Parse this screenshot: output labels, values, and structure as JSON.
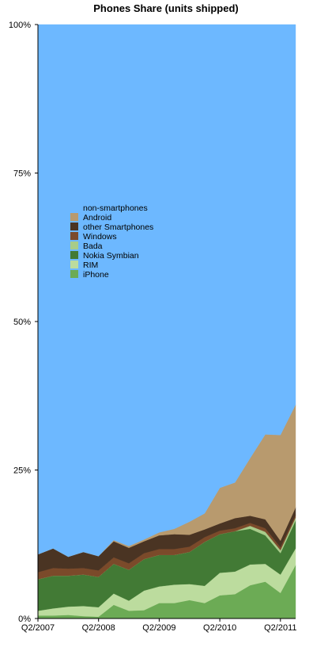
{
  "chart_data": {
    "type": "area",
    "stacked": true,
    "normalized": true,
    "title": "Phones Share (units shipped)",
    "xlabel": "",
    "ylabel": "",
    "ylim": [
      0,
      100
    ],
    "y_ticks": [
      0,
      25,
      50,
      75,
      100
    ],
    "y_tick_labels": [
      "0%",
      "25%",
      "50%",
      "75%",
      "100%"
    ],
    "x_ticks": [
      "Q2/2007",
      "Q2/2008",
      "Q2/2009",
      "Q2/2010",
      "Q2/2011"
    ],
    "x_tick_indices": [
      0,
      4,
      8,
      12,
      16
    ],
    "categories": [
      "Q2/2007",
      "Q3/2007",
      "Q4/2007",
      "Q1/2008",
      "Q2/2008",
      "Q3/2008",
      "Q4/2008",
      "Q1/2009",
      "Q2/2009",
      "Q3/2009",
      "Q4/2009",
      "Q1/2010",
      "Q2/2010",
      "Q3/2010",
      "Q4/2010",
      "Q1/2011",
      "Q2/2011",
      "Q3/2011"
    ],
    "legend_position": "upper-left",
    "legend": [
      {
        "label": "non-smartphones",
        "color": "#6db8ff"
      },
      {
        "label": "Android",
        "color": "#b89a6e"
      },
      {
        "label": "other Smartphones",
        "color": "#4a3423"
      },
      {
        "label": "Windows",
        "color": "#7b4a2a"
      },
      {
        "label": "Bada",
        "color": "#a8cc8a"
      },
      {
        "label": "Nokia Symbian",
        "color": "#427a35"
      },
      {
        "label": "RIM",
        "color": "#bcdc9e"
      },
      {
        "label": "iPhone",
        "color": "#6cab55"
      }
    ],
    "series": [
      {
        "name": "iPhone",
        "color": "#6cab55",
        "values": [
          0.5,
          0.5,
          0.6,
          0.4,
          0.3,
          2.3,
          1.3,
          1.4,
          2.6,
          2.6,
          3.1,
          2.6,
          3.9,
          4.1,
          5.6,
          6.2,
          4.3,
          9.0
        ]
      },
      {
        "name": "RIM",
        "color": "#bcdc9e",
        "values": [
          0.8,
          1.2,
          1.4,
          1.7,
          1.6,
          1.9,
          1.7,
          3.3,
          2.8,
          3.1,
          2.7,
          2.9,
          3.8,
          3.8,
          3.5,
          3.0,
          3.1,
          2.8
        ]
      },
      {
        "name": "Nokia Symbian",
        "color": "#427a35",
        "values": [
          5.3,
          5.5,
          5.2,
          5.3,
          5.1,
          5.0,
          5.2,
          5.3,
          5.3,
          5.0,
          5.4,
          7.4,
          6.5,
          6.8,
          6.0,
          4.8,
          3.6,
          4.7
        ]
      },
      {
        "name": "Bada",
        "color": "#a8cc8a",
        "values": [
          0,
          0,
          0,
          0,
          0,
          0,
          0,
          0,
          0,
          0,
          0,
          0,
          0,
          0,
          0.5,
          0.6,
          0.5,
          0.5
        ]
      },
      {
        "name": "Windows",
        "color": "#7b4a2a",
        "values": [
          1.2,
          1.3,
          1.2,
          1.1,
          1.1,
          1.1,
          1.1,
          1.0,
          1.0,
          1.0,
          0.9,
          0.8,
          0.6,
          0.5,
          0.5,
          0.6,
          0.5,
          0.4
        ]
      },
      {
        "name": "other Smartphones",
        "color": "#4a3423",
        "values": [
          3.0,
          3.3,
          2.0,
          2.7,
          2.4,
          2.7,
          2.6,
          2.0,
          2.3,
          2.5,
          2.0,
          1.3,
          1.2,
          1.7,
          1.2,
          1.5,
          1.1,
          1.3
        ]
      },
      {
        "name": "Android",
        "color": "#b89a6e",
        "values": [
          0,
          0,
          0,
          0,
          0,
          0.2,
          0.3,
          0.3,
          0.5,
          0.9,
          2.2,
          2.7,
          6.0,
          6.0,
          9.7,
          14.3,
          17.8,
          17.3
        ]
      },
      {
        "name": "non-smartphones",
        "color": "#6db8ff",
        "values": [
          89.2,
          88.2,
          89.6,
          88.8,
          89.5,
          86.8,
          87.8,
          86.7,
          85.5,
          84.9,
          83.7,
          82.3,
          78.0,
          77.1,
          73.0,
          69.0,
          69.1,
          64.0
        ]
      }
    ]
  }
}
